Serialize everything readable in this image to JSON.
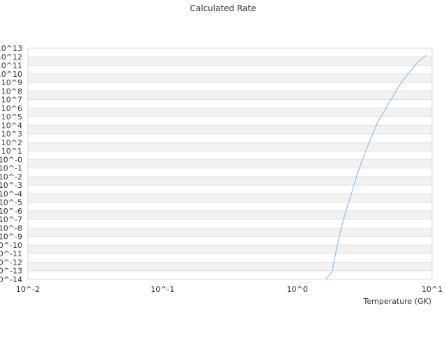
{
  "chart_data": {
    "type": "line",
    "title": "Calculated Rate",
    "xlabel": "Temperature (GK)",
    "ylabel": "",
    "x_scale": "log",
    "y_scale": "log",
    "xlim": [
      0.01,
      10
    ],
    "ylim_exponents": [
      -14,
      13
    ],
    "x_tick_labels": [
      "10^-2",
      "10^-1",
      "10^0",
      "10^1"
    ],
    "y_tick_labels": [
      "10^13",
      "10^12",
      "10^11",
      "10^10",
      "10^9",
      "10^8",
      "10^7",
      "10^6",
      "10^5",
      "10^4",
      "10^3",
      "10^2",
      "10^1",
      "10^-0",
      "10^-1",
      "10^-2",
      "10^-3",
      "10^-4",
      "10^-5",
      "10^-6",
      "10^-7",
      "10^-8",
      "10^-9",
      "10^-10",
      "10^-11",
      "10^-12",
      "10^-13",
      "10^-14"
    ],
    "grid": true,
    "alternating_bands": true,
    "line_color": "#7cb5ec",
    "series": [
      {
        "x": [
          1.63,
          1.81,
          2.0,
          2.21,
          2.81,
          3.16,
          3.94,
          4.18,
          5.74,
          6.47,
          8.05,
          9.06
        ],
        "log10_y": [
          -14.0,
          -13.1,
          -9.65,
          -6.93,
          -1.5,
          0.68,
          4.35,
          5.03,
          8.7,
          9.79,
          11.55,
          12.18
        ]
      }
    ]
  }
}
